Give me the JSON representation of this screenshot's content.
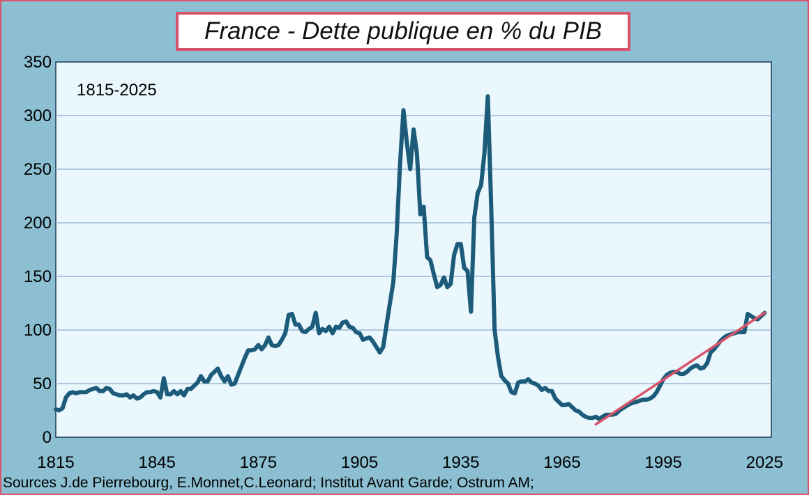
{
  "chart_data": {
    "type": "line",
    "title": "France - Dette publique en % du PIB",
    "annotation": "1815-2025",
    "source": "Sources J.de Pierrebourg, E.Monnet,C.Leonard; Institut Avant Garde; Ostrum AM;",
    "xlim": [
      1815,
      2027
    ],
    "ylim": [
      0,
      350
    ],
    "x_ticks": [
      1815,
      1845,
      1875,
      1905,
      1935,
      1965,
      1995,
      2025
    ],
    "y_ticks": [
      0,
      50,
      100,
      150,
      200,
      250,
      300,
      350
    ],
    "grid": "horizontal",
    "colors": {
      "background": "#8bbfd1",
      "plot_area": "#eaf8fd",
      "gridline": "#9ab7d6",
      "series": "#1c5b7a",
      "trend": "#d9536a",
      "border": "#d9536a"
    },
    "series": [
      {
        "color": "#1c5b7a",
        "points": [
          [
            1815,
            26
          ],
          [
            1816,
            25
          ],
          [
            1817,
            27
          ],
          [
            1818,
            37
          ],
          [
            1819,
            41
          ],
          [
            1820,
            42
          ],
          [
            1821,
            41
          ],
          [
            1822,
            42
          ],
          [
            1823,
            42
          ],
          [
            1824,
            42
          ],
          [
            1825,
            44
          ],
          [
            1826,
            45
          ],
          [
            1827,
            46
          ],
          [
            1828,
            43
          ],
          [
            1829,
            43
          ],
          [
            1830,
            46
          ],
          [
            1831,
            45
          ],
          [
            1832,
            41
          ],
          [
            1833,
            40
          ],
          [
            1834,
            39
          ],
          [
            1835,
            39
          ],
          [
            1836,
            40
          ],
          [
            1837,
            37
          ],
          [
            1838,
            39
          ],
          [
            1839,
            36
          ],
          [
            1840,
            37
          ],
          [
            1841,
            40
          ],
          [
            1842,
            42
          ],
          [
            1843,
            42
          ],
          [
            1844,
            43
          ],
          [
            1845,
            42
          ],
          [
            1846,
            37
          ],
          [
            1847,
            55
          ],
          [
            1848,
            40
          ],
          [
            1849,
            40
          ],
          [
            1850,
            43
          ],
          [
            1851,
            40
          ],
          [
            1852,
            43
          ],
          [
            1853,
            39
          ],
          [
            1854,
            45
          ],
          [
            1855,
            45
          ],
          [
            1856,
            48
          ],
          [
            1857,
            51
          ],
          [
            1858,
            57
          ],
          [
            1859,
            52
          ],
          [
            1860,
            52
          ],
          [
            1861,
            58
          ],
          [
            1862,
            61
          ],
          [
            1863,
            64
          ],
          [
            1864,
            57
          ],
          [
            1865,
            52
          ],
          [
            1866,
            57
          ],
          [
            1867,
            49
          ],
          [
            1868,
            50
          ],
          [
            1869,
            58
          ],
          [
            1870,
            66
          ],
          [
            1871,
            74
          ],
          [
            1872,
            81
          ],
          [
            1873,
            81
          ],
          [
            1874,
            82
          ],
          [
            1875,
            86
          ],
          [
            1876,
            82
          ],
          [
            1877,
            86
          ],
          [
            1878,
            93
          ],
          [
            1879,
            86
          ],
          [
            1880,
            85
          ],
          [
            1881,
            86
          ],
          [
            1882,
            91
          ],
          [
            1883,
            97
          ],
          [
            1884,
            114
          ],
          [
            1885,
            115
          ],
          [
            1886,
            105
          ],
          [
            1887,
            105
          ],
          [
            1888,
            99
          ],
          [
            1889,
            98
          ],
          [
            1890,
            101
          ],
          [
            1891,
            103
          ],
          [
            1892,
            116
          ],
          [
            1893,
            97
          ],
          [
            1894,
            101
          ],
          [
            1895,
            99
          ],
          [
            1896,
            103
          ],
          [
            1897,
            97
          ],
          [
            1898,
            103
          ],
          [
            1899,
            102
          ],
          [
            1900,
            107
          ],
          [
            1901,
            108
          ],
          [
            1902,
            103
          ],
          [
            1903,
            102
          ],
          [
            1904,
            98
          ],
          [
            1905,
            97
          ],
          [
            1906,
            91
          ],
          [
            1907,
            92
          ],
          [
            1908,
            93
          ],
          [
            1909,
            89
          ],
          [
            1910,
            84
          ],
          [
            1911,
            79
          ],
          [
            1912,
            84
          ],
          [
            1913,
            105
          ],
          [
            1914,
            125
          ],
          [
            1915,
            145
          ],
          [
            1916,
            190
          ],
          [
            1917,
            255
          ],
          [
            1918,
            305
          ],
          [
            1919,
            275
          ],
          [
            1920,
            250
          ],
          [
            1921,
            287
          ],
          [
            1922,
            265
          ],
          [
            1923,
            208
          ],
          [
            1924,
            215
          ],
          [
            1925,
            168
          ],
          [
            1926,
            165
          ],
          [
            1927,
            152
          ],
          [
            1928,
            140
          ],
          [
            1929,
            142
          ],
          [
            1930,
            149
          ],
          [
            1931,
            140
          ],
          [
            1932,
            143
          ],
          [
            1933,
            170
          ],
          [
            1934,
            180
          ],
          [
            1935,
            180
          ],
          [
            1936,
            158
          ],
          [
            1937,
            155
          ],
          [
            1938,
            117
          ],
          [
            1939,
            205
          ],
          [
            1940,
            228
          ],
          [
            1941,
            235
          ],
          [
            1942,
            265
          ],
          [
            1943,
            318
          ],
          [
            1944,
            215
          ],
          [
            1945,
            100
          ],
          [
            1946,
            75
          ],
          [
            1947,
            57
          ],
          [
            1948,
            53
          ],
          [
            1949,
            50
          ],
          [
            1950,
            42
          ],
          [
            1951,
            41
          ],
          [
            1952,
            51
          ],
          [
            1953,
            52
          ],
          [
            1954,
            52
          ],
          [
            1955,
            54
          ],
          [
            1956,
            51
          ],
          [
            1957,
            50
          ],
          [
            1958,
            48
          ],
          [
            1959,
            44
          ],
          [
            1960,
            46
          ],
          [
            1961,
            43
          ],
          [
            1962,
            43
          ],
          [
            1963,
            36
          ],
          [
            1964,
            33
          ],
          [
            1965,
            30
          ],
          [
            1966,
            30
          ],
          [
            1967,
            31
          ],
          [
            1968,
            28
          ],
          [
            1969,
            25
          ],
          [
            1970,
            24
          ],
          [
            1971,
            21
          ],
          [
            1972,
            19
          ],
          [
            1973,
            18
          ],
          [
            1974,
            18
          ],
          [
            1975,
            19
          ],
          [
            1976,
            17
          ],
          [
            1977,
            19
          ],
          [
            1978,
            21
          ],
          [
            1979,
            21
          ],
          [
            1980,
            21
          ],
          [
            1981,
            22
          ],
          [
            1982,
            25
          ],
          [
            1983,
            27
          ],
          [
            1984,
            29
          ],
          [
            1985,
            31
          ],
          [
            1986,
            32
          ],
          [
            1987,
            33
          ],
          [
            1988,
            34
          ],
          [
            1989,
            35
          ],
          [
            1990,
            35
          ],
          [
            1991,
            36
          ],
          [
            1992,
            38
          ],
          [
            1993,
            42
          ],
          [
            1994,
            48
          ],
          [
            1995,
            54
          ],
          [
            1996,
            58
          ],
          [
            1997,
            60
          ],
          [
            1998,
            61
          ],
          [
            1999,
            61
          ],
          [
            2000,
            59
          ],
          [
            2001,
            59
          ],
          [
            2002,
            61
          ],
          [
            2003,
            64
          ],
          [
            2004,
            66
          ],
          [
            2005,
            67
          ],
          [
            2006,
            64
          ],
          [
            2007,
            65
          ],
          [
            2008,
            69
          ],
          [
            2009,
            79
          ],
          [
            2010,
            82
          ],
          [
            2011,
            86
          ],
          [
            2012,
            90
          ],
          [
            2013,
            93
          ],
          [
            2014,
            95
          ],
          [
            2015,
            96
          ],
          [
            2016,
            97
          ],
          [
            2017,
            98
          ],
          [
            2018,
            98
          ],
          [
            2019,
            98
          ],
          [
            2020,
            115
          ],
          [
            2021,
            113
          ],
          [
            2022,
            111
          ],
          [
            2023,
            110
          ],
          [
            2024,
            113
          ],
          [
            2025,
            116
          ]
        ]
      }
    ],
    "trend_line": {
      "color": "#d9536a",
      "points": [
        [
          1975,
          12
        ],
        [
          2025,
          116
        ]
      ]
    }
  }
}
